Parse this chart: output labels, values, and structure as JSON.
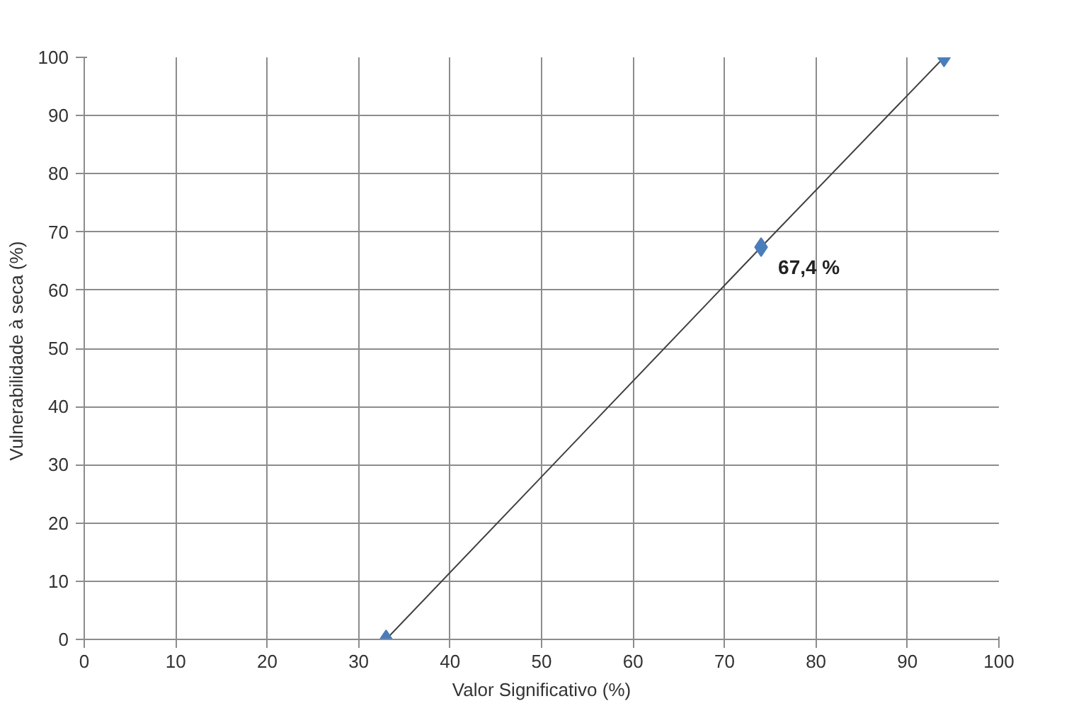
{
  "chart_data": {
    "type": "line",
    "xlabel": "Valor Significativo (%)",
    "ylabel": "Vulnerabilidade  à seca (%)",
    "x": [
      33,
      74,
      94
    ],
    "series": [
      {
        "color": "#4a7ebb",
        "values": [
          0,
          67.4,
          100
        ]
      }
    ],
    "marker": "diamond",
    "line_style": "solid",
    "grid": true,
    "xlim": [
      0,
      100
    ],
    "xticks": [
      0,
      10,
      20,
      30,
      40,
      50,
      60,
      70,
      80,
      90,
      100
    ],
    "ylim": [
      0,
      100
    ],
    "yticks": [
      0,
      10,
      20,
      30,
      40,
      50,
      60,
      70,
      80,
      90,
      100
    ],
    "annotations": [
      {
        "text": "67,4 %",
        "x": 74,
        "y": 67.4
      }
    ]
  }
}
